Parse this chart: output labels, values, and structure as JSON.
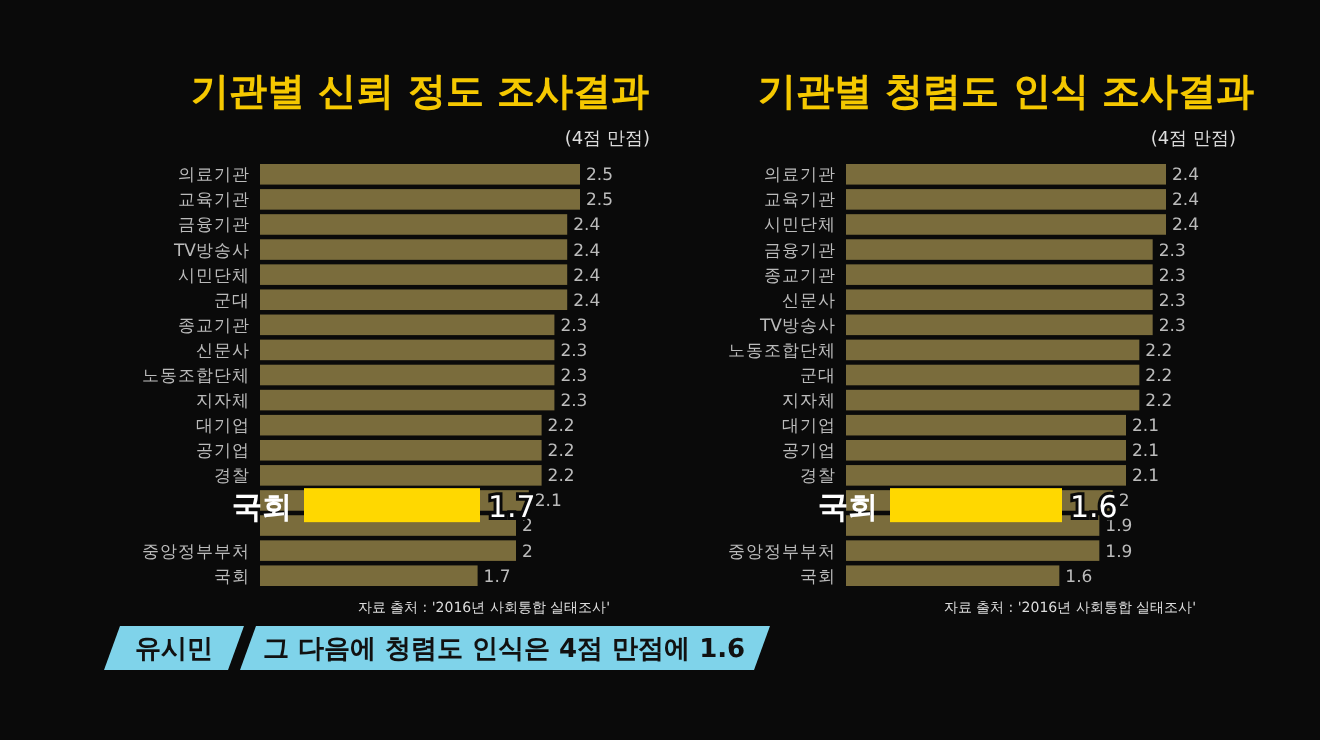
{
  "chart_data": [
    {
      "type": "bar",
      "orientation": "horizontal",
      "title": "기관별 신뢰 정도 조사결과",
      "subtitle": "(4점 만점)",
      "categories": [
        "의료기관",
        "교육기관",
        "금융기관",
        "TV방송사",
        "시민단체",
        "군대",
        "종교기관",
        "신문사",
        "노동조합단체",
        "지자체",
        "대기업",
        "공기업",
        "경찰",
        null,
        null,
        "중앙정부부처",
        "국회"
      ],
      "values": [
        2.5,
        2.5,
        2.4,
        2.4,
        2.4,
        2.4,
        2.3,
        2.3,
        2.3,
        2.3,
        2.2,
        2.2,
        2.2,
        2.1,
        2,
        2,
        1.7
      ],
      "color": "#7a6c3c",
      "data_labels": true,
      "tick_labels": "y",
      "annotations": [
        "국회",
        "1.7",
        "자료 출처 : '2016년 사회통합 실태조사'"
      ]
    },
    {
      "type": "bar",
      "orientation": "horizontal",
      "title": "기관별 청렴도 인식 조사결과",
      "subtitle": "(4점 만점)",
      "categories": [
        "의료기관",
        "교육기관",
        "시민단체",
        "금융기관",
        "종교기관",
        "신문사",
        "TV방송사",
        "노동조합단체",
        "군대",
        "지자체",
        "대기업",
        "공기업",
        "경찰",
        null,
        null,
        "중앙정부부처",
        "국회"
      ],
      "values": [
        2.4,
        2.4,
        2.4,
        2.3,
        2.3,
        2.3,
        2.3,
        2.2,
        2.2,
        2.2,
        2.1,
        2.1,
        2.1,
        2,
        1.9,
        1.9,
        1.6
      ],
      "color": "#7a6c3c",
      "data_labels": true,
      "tick_labels": "y",
      "annotations": [
        "국회",
        "1.6",
        "자료 출처 : '2016년 사회통합 실태조사'",
        "유시민",
        "그 다음에 청렴도 인식은 4점 만점에 1.6"
      ]
    }
  ]
}
